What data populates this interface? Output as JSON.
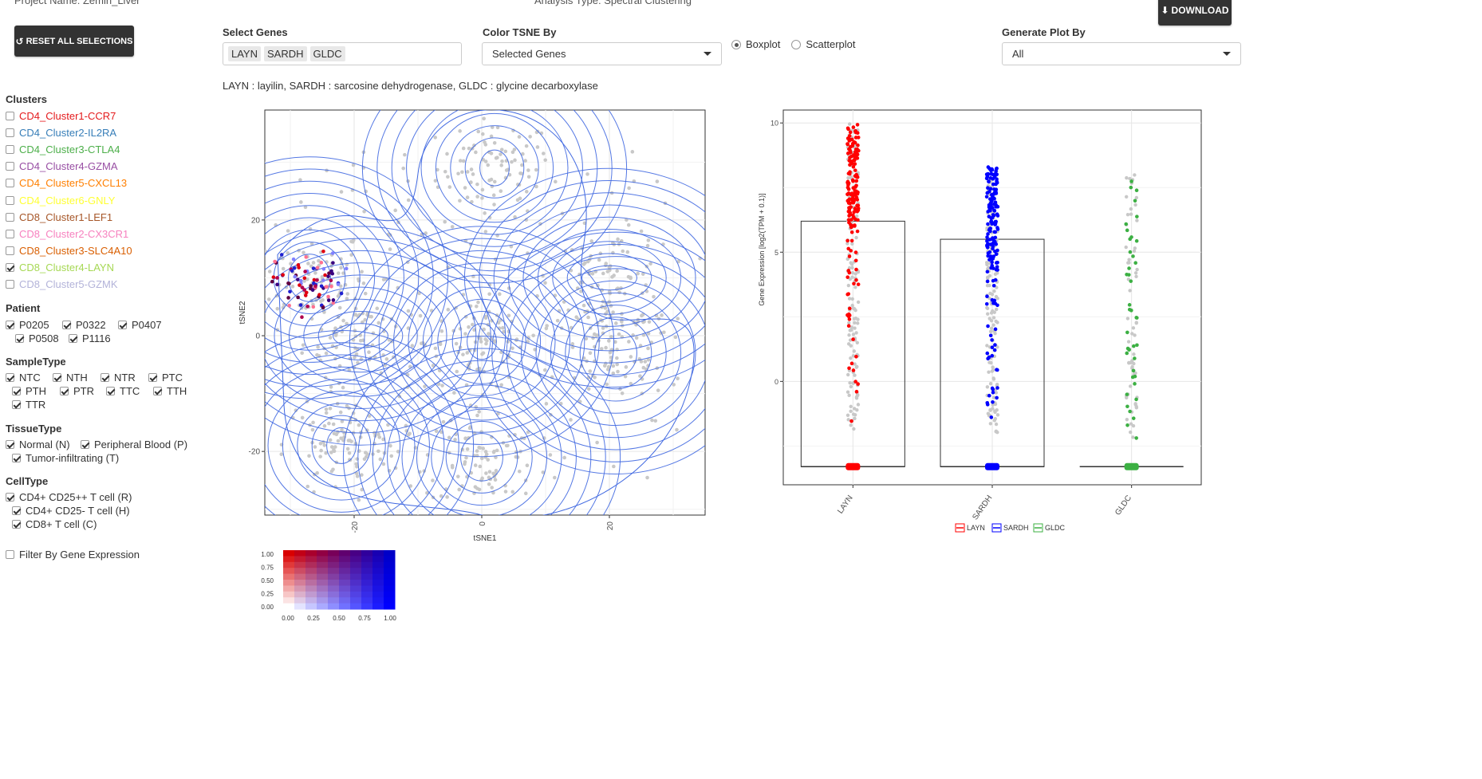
{
  "header": {
    "project": "Project Name: Zemin_Liver",
    "analysis": "Analysis Type: Spectral Clustering"
  },
  "buttons": {
    "reset": "RESET ALL SELECTIONS",
    "download": "DOWNLOAD"
  },
  "controls": {
    "select_genes_label": "Select Genes",
    "selected_genes": [
      "LAYN",
      "SARDH",
      "GLDC"
    ],
    "color_tsne_label": "Color TSNE By",
    "color_tsne_value": "Selected Genes",
    "plot_types": [
      {
        "label": "Boxplot",
        "selected": true
      },
      {
        "label": "Scatterplot",
        "selected": false
      }
    ],
    "generate_label": "Generate Plot By",
    "generate_value": "All",
    "gene_description": "LAYN : layilin, SARDH : sarcosine dehydrogenase, GLDC : glycine decarboxylase"
  },
  "sidebar": {
    "clusters_title": "Clusters",
    "clusters": [
      {
        "label": "CD4_Cluster1-CCR7",
        "color": "#e41a1c",
        "checked": false
      },
      {
        "label": "CD4_Cluster2-IL2RA",
        "color": "#377eb8",
        "checked": false
      },
      {
        "label": "CD4_Cluster3-CTLA4",
        "color": "#4daf4a",
        "checked": false
      },
      {
        "label": "CD4_Cluster4-GZMA",
        "color": "#984ea3",
        "checked": false
      },
      {
        "label": "CD4_Cluster5-CXCL13",
        "color": "#ff7f00",
        "checked": false
      },
      {
        "label": "CD4_Cluster6-GNLY",
        "color": "#ffff33",
        "checked": false
      },
      {
        "label": "CD8_Cluster1-LEF1",
        "color": "#a65628",
        "checked": false
      },
      {
        "label": "CD8_Cluster2-CX3CR1",
        "color": "#f781bf",
        "checked": false
      },
      {
        "label": "CD8_Cluster3-SLC4A10",
        "color": "#d95f02",
        "checked": false
      },
      {
        "label": "CD8_Cluster4-LAYN",
        "color": "#a6d854",
        "checked": true
      },
      {
        "label": "CD8_Cluster5-GZMK",
        "color": "#b3b3d9",
        "checked": false
      }
    ],
    "patient_title": "Patient",
    "patients": [
      "P0205",
      "P0322",
      "P0407",
      "P0508",
      "P1116"
    ],
    "sampletype_title": "SampleType",
    "sampletypes": [
      "NTC",
      "NTH",
      "NTR",
      "PTC",
      "PTH",
      "PTR",
      "TTC",
      "TTH",
      "TTR"
    ],
    "tissuetype_title": "TissueType",
    "tissuetypes": [
      "Normal (N)",
      "Peripheral Blood (P)",
      "Tumor-infiltrating (T)"
    ],
    "celltype_title": "CellType",
    "celltypes": [
      "CD4+ CD25++ T cell (R)",
      "CD4+ CD25- T cell (H)",
      "CD8+ T cell (C)"
    ],
    "filter_label": "Filter By Gene Expression"
  },
  "tsne": {
    "type": "scatter",
    "xlabel": "tSNE1",
    "ylabel": "tSNE2",
    "xticks": [
      "-20",
      "0",
      "20"
    ],
    "yticks": [
      "20",
      "0",
      "-20"
    ],
    "x_tick_values": [
      -20,
      0,
      20
    ],
    "y_tick_values": [
      20,
      0,
      -20
    ],
    "xlim": [
      -34,
      35
    ],
    "ylim": [
      -31,
      39
    ],
    "contour_color": "#4169e1",
    "point_color": "#c8c8c8",
    "density_centers": [
      {
        "x": 2,
        "y": 29
      },
      {
        "x": -27,
        "y": 10
      },
      {
        "x": -19,
        "y": 0
      },
      {
        "x": 0,
        "y": -1
      },
      {
        "x": 21,
        "y": -3
      },
      {
        "x": 20,
        "y": 10
      },
      {
        "x": -22,
        "y": -19
      },
      {
        "x": 0,
        "y": -21
      }
    ],
    "highlighted_cluster": {
      "x": -27,
      "y": 9
    }
  },
  "legend2d": {
    "yticks": [
      "1.00",
      "0.75",
      "0.50",
      "0.25",
      "0.00"
    ],
    "xticks": [
      "0.00",
      "0.25",
      "0.50",
      "0.75",
      "1.00"
    ]
  },
  "chart_data": {
    "type": "bar",
    "categories": [
      "LAYN",
      "SARDH",
      "GLDC"
    ],
    "values": [
      6.2,
      5.5,
      -3.3
    ],
    "medians": [
      -3.3,
      -3.3,
      -3.3
    ],
    "point_ranges": [
      [
        -2,
        10
      ],
      [
        -2,
        8.3
      ],
      [
        -2.2,
        8
      ]
    ],
    "colors": [
      "#ff0000",
      "#0000ff",
      "#3cb043"
    ],
    "ylabel": "Gene Expression [log2(TPM + 0.1)]",
    "yticks": [
      "10",
      "5",
      "0"
    ],
    "ytick_values": [
      10,
      5,
      0
    ],
    "ylim": [
      -4,
      10.5
    ],
    "legend": [
      "LAYN",
      "SARDH",
      "GLDC"
    ]
  }
}
